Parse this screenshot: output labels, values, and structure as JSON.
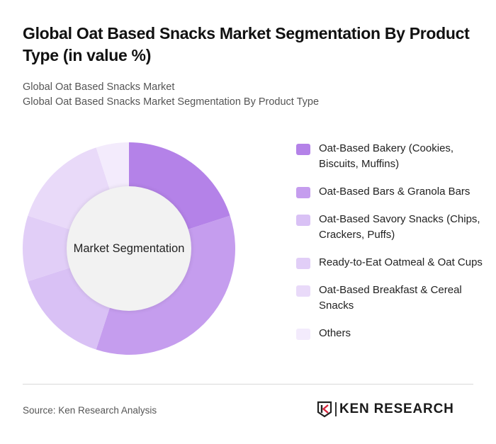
{
  "header": {
    "title": "Global Oat Based Snacks Market Segmentation By Product Type (in value %)",
    "subtitle_line1": "Global Oat Based Snacks Market",
    "subtitle_line2": "Global Oat Based Snacks Market Segmentation By Product Type"
  },
  "chart_data": {
    "type": "pie",
    "variant": "donut",
    "title": "Global Oat Based Snacks Market Segmentation By Product Type (in value %)",
    "center_label": "Market Segmentation",
    "categories": [
      "Oat-Based Bakery (Cookies, Biscuits, Muffins)",
      "Oat-Based Bars & Granola Bars",
      "Oat-Based Savory Snacks (Chips, Crackers, Puffs)",
      "Ready-to-Eat Oatmeal & Oat Cups",
      "Oat-Based Breakfast & Cereal Snacks",
      "Others"
    ],
    "values": [
      20,
      35,
      15,
      10,
      15,
      5
    ],
    "colors": [
      "#b482e8",
      "#c59dee",
      "#d9c1f5",
      "#e1cef7",
      "#e9daf9",
      "#f3ebfc"
    ],
    "legend_position": "right"
  },
  "legend": {
    "items": [
      {
        "label": "Oat-Based Bakery (Cookies, Biscuits, Muffins)",
        "color": "#b482e8"
      },
      {
        "label": "Oat-Based Bars & Granola Bars",
        "color": "#c59dee"
      },
      {
        "label": "Oat-Based Savory Snacks (Chips, Crackers, Puffs)",
        "color": "#d9c1f5"
      },
      {
        "label": "Ready-to-Eat Oatmeal & Oat Cups",
        "color": "#e1cef7"
      },
      {
        "label": "Oat-Based Breakfast & Cereal Snacks",
        "color": "#e9daf9"
      },
      {
        "label": "Others",
        "color": "#f3ebfc"
      }
    ]
  },
  "footer": {
    "source": "Source: Ken Research Analysis",
    "logo_text": "KEN RESEARCH"
  }
}
